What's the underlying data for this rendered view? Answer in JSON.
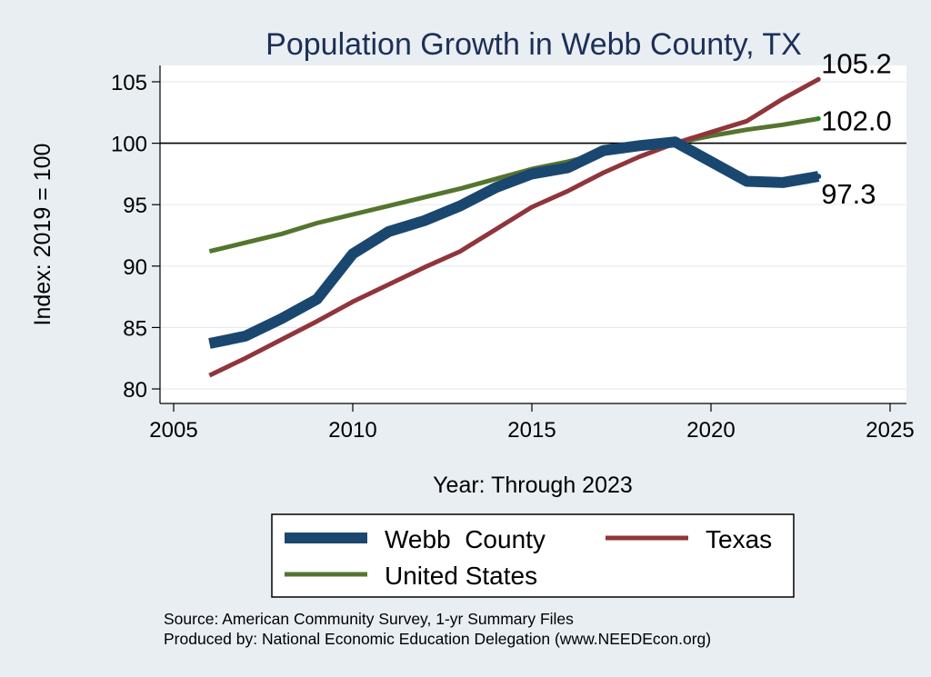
{
  "chart_data": {
    "type": "line",
    "title": "Population Growth in Webb County, TX",
    "xlabel": "Year: Through 2023",
    "ylabel": "Index: 2019 = 100",
    "xlim": [
      2005,
      2025
    ],
    "ylim": [
      80,
      105
    ],
    "x_ticks": [
      2005,
      2010,
      2015,
      2020,
      2025
    ],
    "y_ticks": [
      80,
      85,
      90,
      95,
      100,
      105
    ],
    "reference_line": 100,
    "grid": true,
    "series": [
      {
        "name": "Webb  County",
        "color": "#1a476f",
        "x": [
          2006,
          2007,
          2008,
          2009,
          2010,
          2011,
          2012,
          2013,
          2014,
          2015,
          2016,
          2017,
          2018,
          2019,
          2021,
          2022,
          2023
        ],
        "values": [
          83.7,
          84.3,
          85.7,
          87.3,
          91.0,
          92.8,
          93.7,
          94.9,
          96.4,
          97.5,
          98.0,
          99.4,
          99.8,
          100.1,
          96.9,
          96.8,
          97.3
        ],
        "end_label": "97.3"
      },
      {
        "name": "Texas",
        "color": "#90353b",
        "x": [
          2006,
          2007,
          2008,
          2009,
          2010,
          2011,
          2012,
          2013,
          2014,
          2015,
          2016,
          2017,
          2018,
          2019,
          2020,
          2021,
          2022,
          2023
        ],
        "values": [
          81.1,
          82.5,
          84.0,
          85.5,
          87.1,
          88.5,
          89.9,
          91.2,
          93.0,
          94.8,
          96.1,
          97.6,
          98.9,
          100.0,
          100.9,
          101.8,
          103.6,
          105.2
        ],
        "end_label": "105.2"
      },
      {
        "name": "United States",
        "color": "#55752f",
        "x": [
          2006,
          2007,
          2008,
          2009,
          2010,
          2011,
          2012,
          2013,
          2014,
          2015,
          2016,
          2017,
          2018,
          2019,
          2020,
          2021,
          2022,
          2023
        ],
        "values": [
          91.2,
          91.9,
          92.6,
          93.5,
          94.2,
          94.9,
          95.6,
          96.3,
          97.1,
          97.9,
          98.5,
          99.2,
          99.6,
          100.0,
          100.6,
          101.1,
          101.5,
          102.0
        ],
        "end_label": "102.0"
      }
    ],
    "legend_position": "bottom"
  },
  "notes": {
    "source": "Source: American Community Survey, 1-yr Summary Files",
    "produced": "Produced by: National Economic Education Delegation (www.NEEDEcon.org)"
  }
}
